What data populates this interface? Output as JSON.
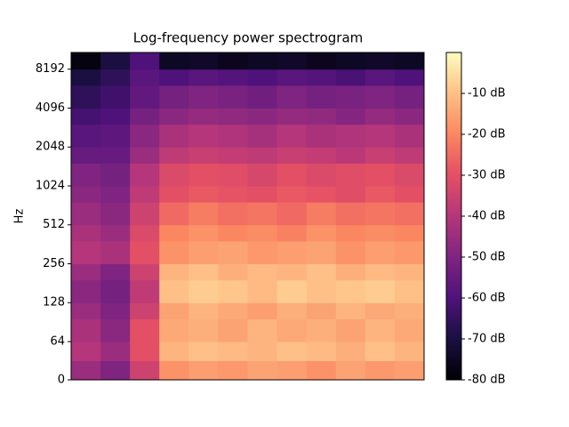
{
  "chart_data": {
    "type": "spectrogram",
    "title": "Log-frequency power spectrogram",
    "ylabel": "Hz",
    "ybins": [
      0,
      32,
      64,
      96,
      128,
      192,
      256,
      384,
      512,
      768,
      1024,
      1536,
      2048,
      3072,
      4096,
      6144,
      8192,
      11025
    ],
    "ylim": [
      0,
      11025
    ],
    "yticks": [
      0,
      64,
      128,
      256,
      512,
      1024,
      2048,
      4096,
      8192
    ],
    "yscale": "symlog",
    "values": [
      [
        -45,
        -50,
        -35,
        -18,
        -16,
        -17,
        -15,
        -16,
        -18,
        -15,
        -17,
        -16
      ],
      [
        -40,
        -45,
        -30,
        -12,
        -10,
        -11,
        -12,
        -10,
        -11,
        -13,
        -10,
        -12
      ],
      [
        -42,
        -48,
        -30,
        -14,
        -13,
        -15,
        -12,
        -14,
        -13,
        -15,
        -12,
        -14
      ],
      [
        -45,
        -50,
        -35,
        -15,
        -12,
        -14,
        -16,
        -13,
        -15,
        -12,
        -14,
        -13
      ],
      [
        -48,
        -52,
        -38,
        -10,
        -8,
        -9,
        -11,
        -8,
        -10,
        -9,
        -8,
        -10
      ],
      [
        -45,
        -50,
        -35,
        -12,
        -10,
        -13,
        -11,
        -12,
        -10,
        -13,
        -11,
        -12
      ],
      [
        -40,
        -42,
        -30,
        -18,
        -16,
        -15,
        -17,
        -16,
        -15,
        -18,
        -16,
        -17
      ],
      [
        -42,
        -45,
        -32,
        -20,
        -18,
        -20,
        -19,
        -21,
        -18,
        -20,
        -19,
        -20
      ],
      [
        -45,
        -48,
        -35,
        -25,
        -22,
        -24,
        -23,
        -25,
        -22,
        -24,
        -23,
        -24
      ],
      [
        -48,
        -50,
        -38,
        -30,
        -28,
        -29,
        -30,
        -28,
        -29,
        -31,
        -28,
        -30
      ],
      [
        -50,
        -52,
        -40,
        -32,
        -30,
        -31,
        -33,
        -30,
        -32,
        -31,
        -30,
        -32
      ],
      [
        -55,
        -55,
        -45,
        -38,
        -36,
        -37,
        -38,
        -36,
        -37,
        -39,
        -36,
        -38
      ],
      [
        -58,
        -57,
        -48,
        -42,
        -40,
        -41,
        -43,
        -40,
        -42,
        -41,
        -40,
        -42
      ],
      [
        -62,
        -60,
        -52,
        -48,
        -46,
        -47,
        -48,
        -46,
        -47,
        -49,
        -46,
        -48
      ],
      [
        -66,
        -63,
        -56,
        -52,
        -50,
        -51,
        -53,
        -50,
        -52,
        -51,
        -50,
        -52
      ],
      [
        -70,
        -66,
        -58,
        -60,
        -58,
        -59,
        -60,
        -58,
        -59,
        -61,
        -58,
        -60
      ],
      [
        -78,
        -70,
        -60,
        -75,
        -74,
        -76,
        -75,
        -74,
        -76,
        -75,
        -74,
        -75
      ]
    ],
    "zlim": [
      -80,
      0
    ],
    "zticks": [
      {
        "value": -10,
        "label": "-10 dB"
      },
      {
        "value": -20,
        "label": "-20 dB"
      },
      {
        "value": -30,
        "label": "-30 dB"
      },
      {
        "value": -40,
        "label": "-40 dB"
      },
      {
        "value": -50,
        "label": "-50 dB"
      },
      {
        "value": -60,
        "label": "-60 dB"
      },
      {
        "value": -70,
        "label": "-70 dB"
      },
      {
        "value": -80,
        "label": "-80 dB"
      }
    ],
    "colormap": "magma"
  }
}
